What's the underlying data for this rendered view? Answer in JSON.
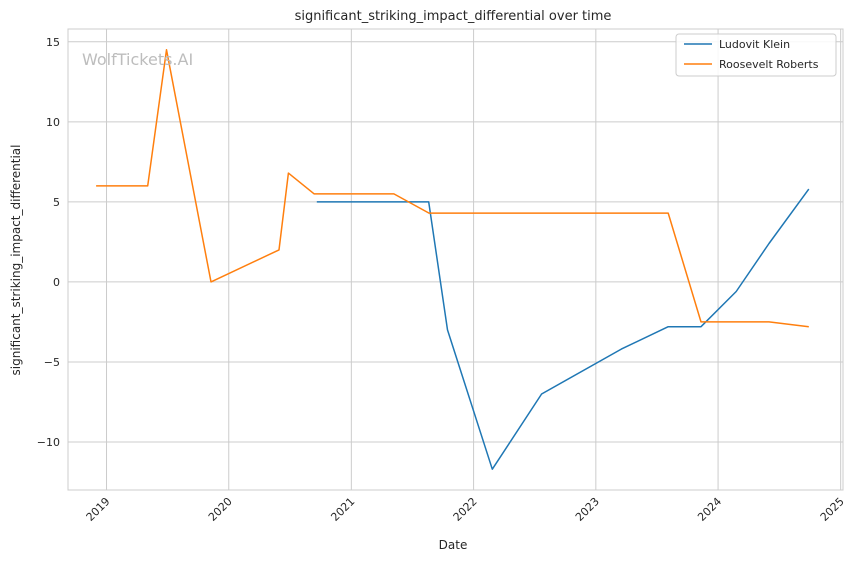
{
  "chart_data": {
    "type": "line",
    "title": "significant_striking_impact_differential over time",
    "xlabel": "Date",
    "ylabel": "significant_striking_impact_differential",
    "watermark": "WolfTickets.AI",
    "x_ticks": [
      "2019",
      "2020",
      "2021",
      "2022",
      "2023",
      "2024",
      "2025"
    ],
    "y_ticks": [
      "15",
      "10",
      "5",
      "0",
      "−5",
      "−10"
    ],
    "y_tick_values": [
      15,
      10,
      5,
      0,
      -5,
      -10
    ],
    "xlim": [
      "2018-09-08",
      "2025-01-08"
    ],
    "ylim": [
      -13,
      15.8
    ],
    "grid": true,
    "legend_position": "top-right",
    "series": [
      {
        "name": "Ludovit Klein",
        "color": "#1f77b4",
        "points": [
          [
            "2020-09-20",
            5.0
          ],
          [
            "2021-08-20",
            5.0
          ],
          [
            "2021-10-15",
            -3.0
          ],
          [
            "2022-02-26",
            -11.7
          ],
          [
            "2022-07-23",
            -7.0
          ],
          [
            "2023-03-18",
            -4.2
          ],
          [
            "2023-08-05",
            -2.8
          ],
          [
            "2023-11-11",
            -2.8
          ],
          [
            "2024-02-24",
            -0.6
          ],
          [
            "2024-06-01",
            2.4
          ],
          [
            "2024-09-28",
            5.8
          ]
        ]
      },
      {
        "name": "Roosevelt Roberts",
        "color": "#ff7f0e",
        "points": [
          [
            "2018-12-01",
            6.0
          ],
          [
            "2019-05-04",
            6.0
          ],
          [
            "2019-06-29",
            14.5
          ],
          [
            "2019-11-09",
            0.0
          ],
          [
            "2020-05-30",
            2.0
          ],
          [
            "2020-06-27",
            6.8
          ],
          [
            "2020-09-12",
            5.5
          ],
          [
            "2021-05-08",
            5.5
          ],
          [
            "2021-08-21",
            4.3
          ],
          [
            "2023-08-05",
            4.3
          ],
          [
            "2023-11-11",
            -2.5
          ],
          [
            "2024-06-01",
            -2.5
          ],
          [
            "2024-09-28",
            -2.8
          ]
        ]
      }
    ]
  }
}
